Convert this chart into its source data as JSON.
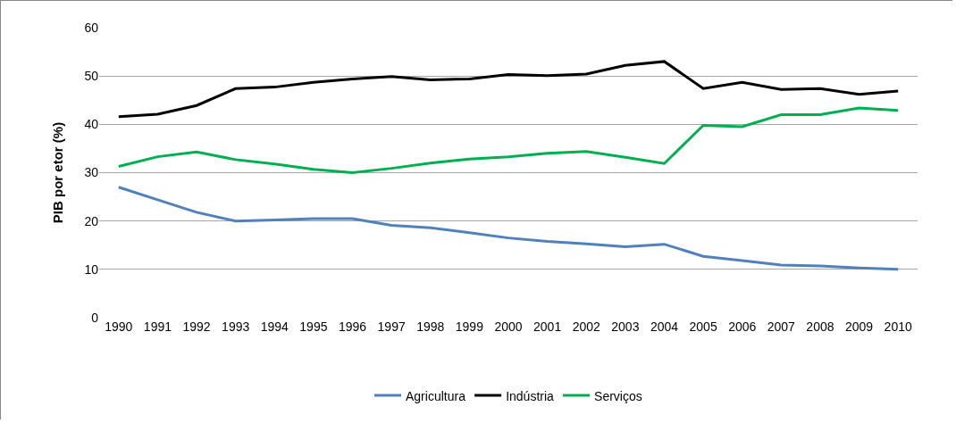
{
  "chart_data": {
    "type": "line",
    "ylabel": "PIB por etor (%)",
    "categories": [
      "1990",
      "1991",
      "1992",
      "1993",
      "1994",
      "1995",
      "1996",
      "1997",
      "1998",
      "1999",
      "2000",
      "2001",
      "2002",
      "2003",
      "2004",
      "2005",
      "2006",
      "2007",
      "2008",
      "2009",
      "2010"
    ],
    "series": [
      {
        "name": "Agricultura",
        "color": "#4f81bd",
        "values": [
          27,
          24.4,
          21.8,
          20,
          20.2,
          20.5,
          20.5,
          19.1,
          18.6,
          17.6,
          16.5,
          15.8,
          15.3,
          14.7,
          15.2,
          12.7,
          11.8,
          10.9,
          10.7,
          10.3,
          10.0
        ]
      },
      {
        "name": "Indústria",
        "color": "#000000",
        "values": [
          41.6,
          42.1,
          43.9,
          47.4,
          47.7,
          48.7,
          49.4,
          49.9,
          49.2,
          49.4,
          50.3,
          50.1,
          50.4,
          52.2,
          53.0,
          47.4,
          48.7,
          47.2,
          47.4,
          46.2,
          46.9
        ]
      },
      {
        "name": "Serviços",
        "color": "#00b050",
        "values": [
          31.3,
          33.3,
          34.3,
          32.7,
          31.8,
          30.7,
          30.0,
          30.9,
          32.0,
          32.8,
          33.3,
          34.0,
          34.4,
          33.2,
          31.9,
          39.8,
          39.5,
          42.0,
          42.0,
          43.4,
          42.9
        ]
      }
    ],
    "ylim": [
      0,
      60
    ],
    "yticks": [
      0,
      10,
      20,
      30,
      40,
      50,
      60
    ],
    "grid": "y",
    "legend": "bottom",
    "marker": "none",
    "line_style": "solid"
  }
}
